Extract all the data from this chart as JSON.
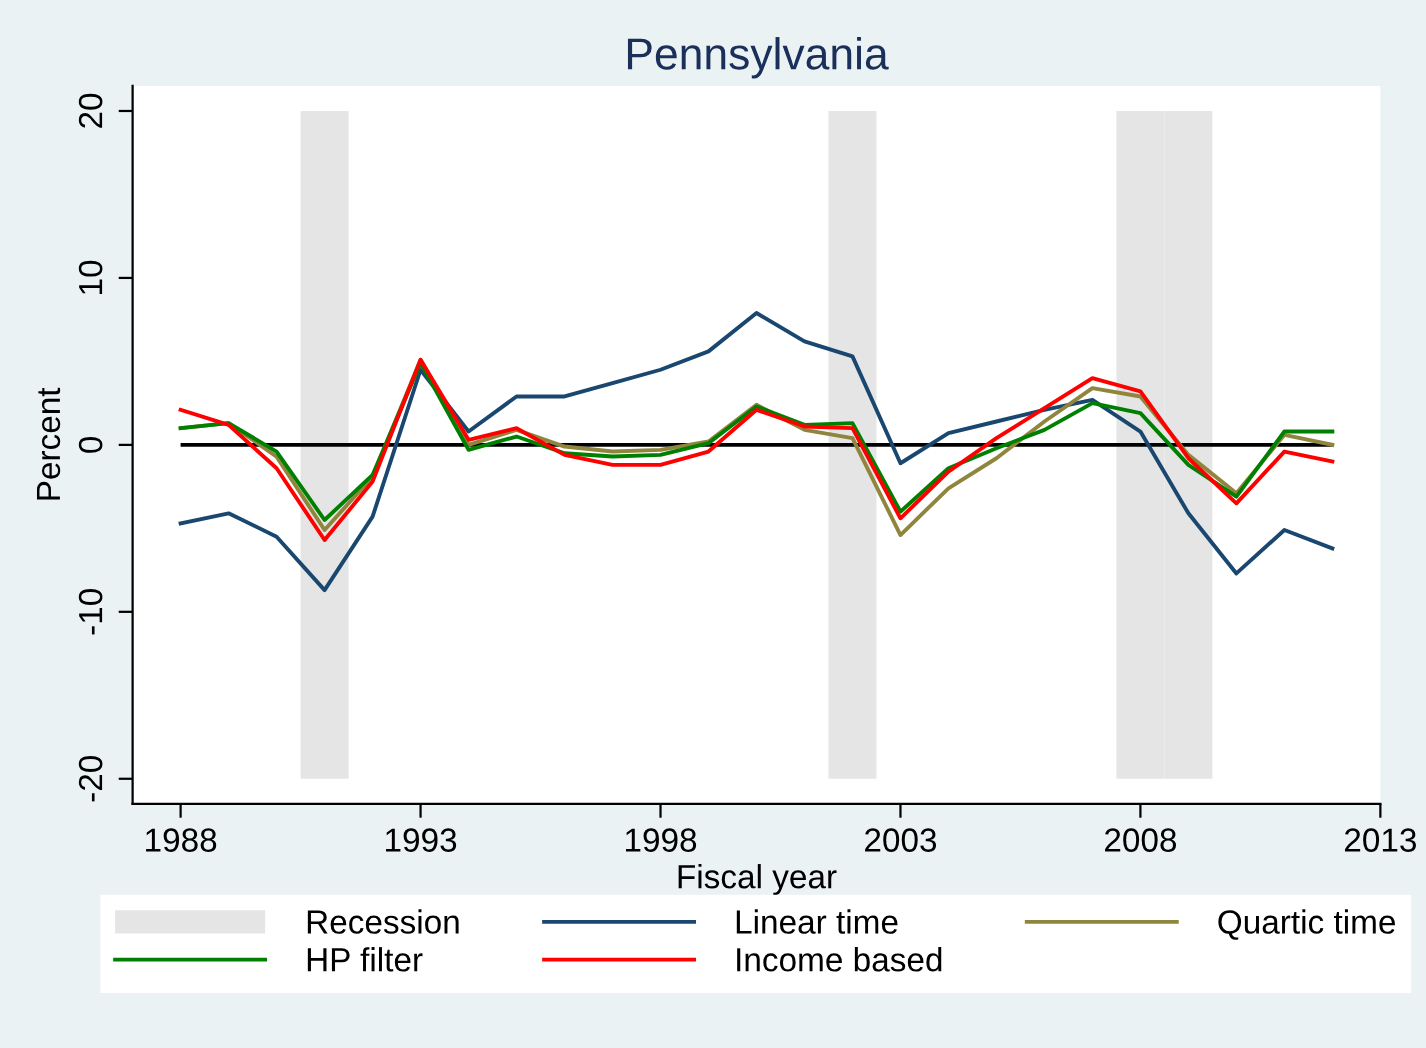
{
  "chart_data": {
    "type": "line",
    "title": "Pennsylvania",
    "xlabel": "Fiscal year",
    "ylabel": "Percent",
    "x": [
      1988,
      1989,
      1990,
      1991,
      1992,
      1993,
      1994,
      1995,
      1996,
      1997,
      1998,
      1999,
      2000,
      2001,
      2002,
      2003,
      2004,
      2005,
      2006,
      2007,
      2008,
      2009,
      2010,
      2011,
      2012
    ],
    "series": [
      {
        "name": "Linear time",
        "color": "#1a476f",
        "values": [
          -4.7,
          -4.1,
          -5.5,
          -8.7,
          -4.3,
          4.5,
          0.8,
          2.9,
          2.9,
          3.7,
          4.5,
          5.6,
          7.9,
          6.2,
          5.3,
          -1.1,
          0.7,
          1.4,
          2.1,
          2.7,
          0.8,
          -4.1,
          -7.7,
          -5.1,
          -6.2
        ]
      },
      {
        "name": "Quartic time",
        "color": "#90853c",
        "values": [
          1.0,
          1.3,
          -0.7,
          -5.1,
          -1.9,
          5.1,
          0.0,
          0.9,
          -0.1,
          -0.4,
          -0.3,
          0.2,
          2.4,
          0.9,
          0.4,
          -5.4,
          -2.6,
          -0.8,
          1.4,
          3.4,
          2.9,
          -0.6,
          -2.9,
          0.6,
          0.0
        ]
      },
      {
        "name": "HP filter",
        "color": "#008000",
        "values": [
          1.0,
          1.3,
          -0.4,
          -4.5,
          -1.8,
          4.9,
          -0.3,
          0.5,
          -0.5,
          -0.7,
          -0.6,
          0.1,
          2.3,
          1.2,
          1.3,
          -4.0,
          -1.4,
          -0.2,
          0.9,
          2.5,
          1.9,
          -1.2,
          -3.1,
          0.8,
          0.8
        ]
      },
      {
        "name": "Income based",
        "color": "#ff0000",
        "values": [
          2.1,
          1.2,
          -1.4,
          -5.7,
          -2.2,
          5.1,
          0.3,
          1.0,
          -0.6,
          -1.2,
          -1.2,
          -0.4,
          2.1,
          1.1,
          1.0,
          -4.4,
          -1.6,
          0.4,
          2.2,
          4.0,
          3.2,
          -0.8,
          -3.5,
          -0.4,
          -1.0
        ]
      }
    ],
    "bands": [
      {
        "axis": "x",
        "from": 1990.5,
        "to": 1991.5,
        "label": "Recession",
        "color": "#e5e5e5"
      },
      {
        "axis": "x",
        "from": 2001.5,
        "to": 2002.5,
        "color": "#e5e5e5"
      },
      {
        "axis": "x",
        "from": 2007.5,
        "to": 2008.5,
        "color": "#e5e5e5"
      },
      {
        "axis": "x",
        "from": 2008.5,
        "to": 2009.5,
        "color": "#e5e5e5"
      }
    ],
    "ref_lines": [
      {
        "axis": "y",
        "value": 0,
        "color": "#000000",
        "line_style": "solid"
      }
    ],
    "xlim": [
      1987,
      2013
    ],
    "xticks": [
      1988,
      1993,
      1998,
      2003,
      2008,
      2013
    ],
    "ylim": [
      -21.5,
      21.5
    ],
    "yticks": [
      -20,
      -10,
      0,
      10,
      20
    ],
    "legend": "bottom",
    "grid": false,
    "marker": "none",
    "line_style": "solid"
  }
}
